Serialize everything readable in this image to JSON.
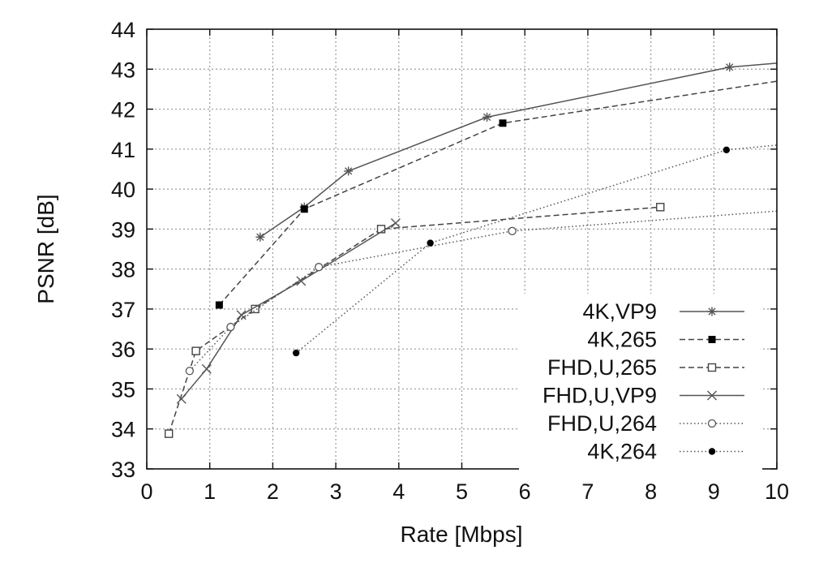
{
  "chart_data": {
    "type": "line",
    "title": "",
    "xlabel": "Rate [Mbps]",
    "ylabel": "PSNR [dB]",
    "xlim": [
      0,
      10
    ],
    "ylim": [
      33,
      44
    ],
    "xticks": [
      0,
      1,
      2,
      3,
      4,
      5,
      6,
      7,
      8,
      9,
      10
    ],
    "yticks": [
      33,
      34,
      35,
      36,
      37,
      38,
      39,
      40,
      41,
      42,
      43,
      44
    ],
    "xtick_labels": [
      "0",
      "1",
      "2",
      "3",
      "4",
      "5",
      "6",
      "7",
      "8",
      "9",
      "10"
    ],
    "ytick_labels": [
      "33",
      "34",
      "35",
      "36",
      "37",
      "38",
      "39",
      "40",
      "41",
      "42",
      "43",
      "44"
    ],
    "grid": true,
    "legend_position": "bottom-right",
    "series": [
      {
        "name": "4K,VP9",
        "line": "solid",
        "marker": "star",
        "color": "#555555",
        "x": [
          1.8,
          2.5,
          3.2,
          5.4,
          9.25,
          10.0
        ],
        "y": [
          38.8,
          39.55,
          40.45,
          41.8,
          43.05,
          43.15
        ],
        "marked": [
          true,
          true,
          true,
          true,
          true,
          false
        ]
      },
      {
        "name": "4K,265",
        "line": "dashed",
        "marker": "filled-square",
        "color": "#444444",
        "x": [
          1.15,
          2.5,
          5.65,
          10.0
        ],
        "y": [
          37.1,
          39.5,
          41.65,
          42.7
        ],
        "marked": [
          true,
          true,
          true,
          false
        ]
      },
      {
        "name": "FHD,U,265",
        "line": "dashed",
        "marker": "open-square",
        "color": "#444444",
        "x": [
          0.35,
          0.78,
          1.72,
          3.72,
          8.15
        ],
        "y": [
          33.88,
          35.95,
          37.0,
          39.0,
          39.55
        ],
        "marked": [
          true,
          true,
          true,
          true,
          true
        ]
      },
      {
        "name": "FHD,U,VP9",
        "line": "solid",
        "marker": "x",
        "color": "#555555",
        "x": [
          0.55,
          0.95,
          1.5,
          2.45,
          3.95
        ],
        "y": [
          34.75,
          35.5,
          36.85,
          37.7,
          39.15
        ],
        "marked": [
          true,
          true,
          true,
          true,
          true
        ]
      },
      {
        "name": "FHD,U,264",
        "line": "dotted",
        "marker": "open-circle",
        "color": "#555555",
        "x": [
          0.68,
          1.33,
          2.73,
          5.8,
          10.0
        ],
        "y": [
          35.45,
          36.55,
          38.05,
          38.95,
          39.45
        ],
        "marked": [
          true,
          true,
          true,
          true,
          false
        ]
      },
      {
        "name": "4K,264",
        "line": "dotted",
        "marker": "filled-circle",
        "color": "#555555",
        "x": [
          2.37,
          4.5,
          9.2,
          10.0
        ],
        "y": [
          35.9,
          38.65,
          40.98,
          41.1
        ],
        "marked": [
          true,
          true,
          true,
          false
        ]
      }
    ]
  }
}
